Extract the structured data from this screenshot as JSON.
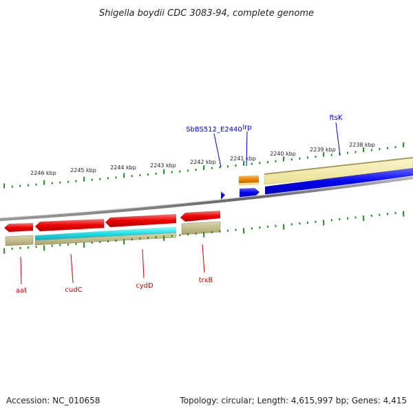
{
  "title": "Shigella boydii CDC 3083-94, complete genome",
  "footer": {
    "accession": "Accession: NC_010658",
    "topology": "Topology: circular; Length: 4,615,997 bp; Genes: 4,415"
  },
  "scale_labels": [
    "2246 kbp",
    "2245 kbp",
    "2244 kbp",
    "2243 kbp",
    "2242 kbp",
    "2241 kbp",
    "2240 kbp",
    "2239 kbp",
    "2238 kbp"
  ],
  "gene_labels_top": [
    "SbBS512_E2440",
    "lrp",
    "ftsK"
  ],
  "gene_labels_bottom": [
    "aat",
    "cudC",
    "cydD",
    "trxB"
  ],
  "colors": {
    "forward_cds": "#0000dd",
    "reverse_cds": "#ee0000",
    "rna": "#ee8800",
    "gene_box": "#f2e8a6",
    "reverse_gene_box": "#b8b07a",
    "cyan_feature": "#22e0e8",
    "tick": "#228822",
    "label_forward": "#0000cc",
    "label_reverse": "#cc0000"
  }
}
